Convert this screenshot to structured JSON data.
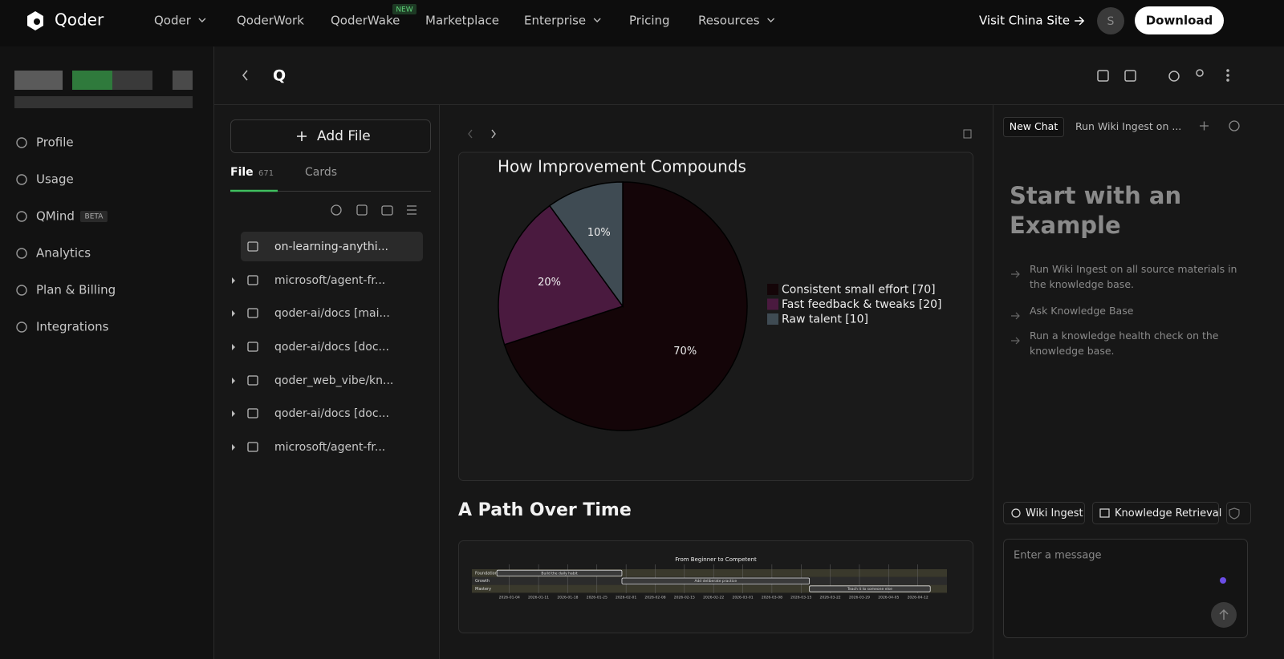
{
  "nav": {
    "brand": "Qoder",
    "items": [
      "Qoder",
      "QoderWork",
      "QoderWake",
      "Marketplace",
      "Enterprise",
      "Pricing",
      "Resources"
    ],
    "badge": "NEW",
    "visit_site": "Visit China Site",
    "avatar": "S",
    "download": "Download"
  },
  "sidebar": {
    "items": [
      "Profile",
      "Usage",
      "QMind",
      "Analytics",
      "Plan & Billing",
      "Integrations"
    ],
    "badge": "BETA"
  },
  "page_header": {
    "title": "Q"
  },
  "file_panel": {
    "add_button": "Add File",
    "tabs": [
      "File",
      "Cards"
    ],
    "file_count": "671",
    "files": [
      "on-learning-anythi...",
      "microsoft/agent-fr...",
      "qoder-ai/docs [mai...",
      "qoder-ai/docs [doc...",
      "qoder_web_vibe/kn...",
      "qoder-ai/docs [doc...",
      "microsoft/agent-fr..."
    ]
  },
  "chart_data": [
    {
      "type": "pie",
      "title": "How Improvement Compounds",
      "categories": [
        "Consistent small effort [70]",
        "Fast feedback & tweaks [20]",
        "Raw talent [10]"
      ],
      "values": [
        70,
        20,
        10
      ],
      "value_labels": [
        "70%",
        "20%",
        "10%"
      ],
      "colors": [
        "#140508",
        "#4a1a3f",
        "#3f4b53"
      ]
    },
    {
      "type": "gantt",
      "title": "From Beginner to Competent",
      "rows": [
        "Foundation",
        "Growth",
        "Mastery"
      ],
      "tasks": [
        {
          "name": "Build the daily habit",
          "start": "2026-01-01",
          "end": "2026-01-31"
        },
        {
          "name": "Add deliberate practice",
          "start": "2026-01-31",
          "end": "2026-03-17"
        },
        {
          "name": "Teach it to someone else",
          "start": "2026-03-17",
          "end": "2026-04-15"
        }
      ],
      "xlim": [
        "2025-12-26",
        "2026-04-19"
      ],
      "xticks": [
        "2026-01-04",
        "2026-01-11",
        "2026-01-18",
        "2026-01-25",
        "2026-02-01",
        "2026-02-08",
        "2026-02-15",
        "2026-02-22",
        "2026-03-01",
        "2026-03-08",
        "2026-03-15",
        "2026-03-22",
        "2026-03-29",
        "2026-04-05",
        "2026-04-12"
      ]
    }
  ],
  "section_heading": "A Path Over Time",
  "chat_panel": {
    "tabs": [
      "New Chat",
      "Run Wiki Ingest on ..."
    ],
    "heading": "Start with an Example",
    "examples": [
      "Run Wiki Ingest on all source materials in the knowledge base.",
      "Ask Knowledge Base",
      "Run a knowledge health check on the knowledge base."
    ],
    "actions": [
      "Wiki Ingest",
      "Knowledge Retrieval"
    ],
    "placeholder": "Enter a message"
  }
}
